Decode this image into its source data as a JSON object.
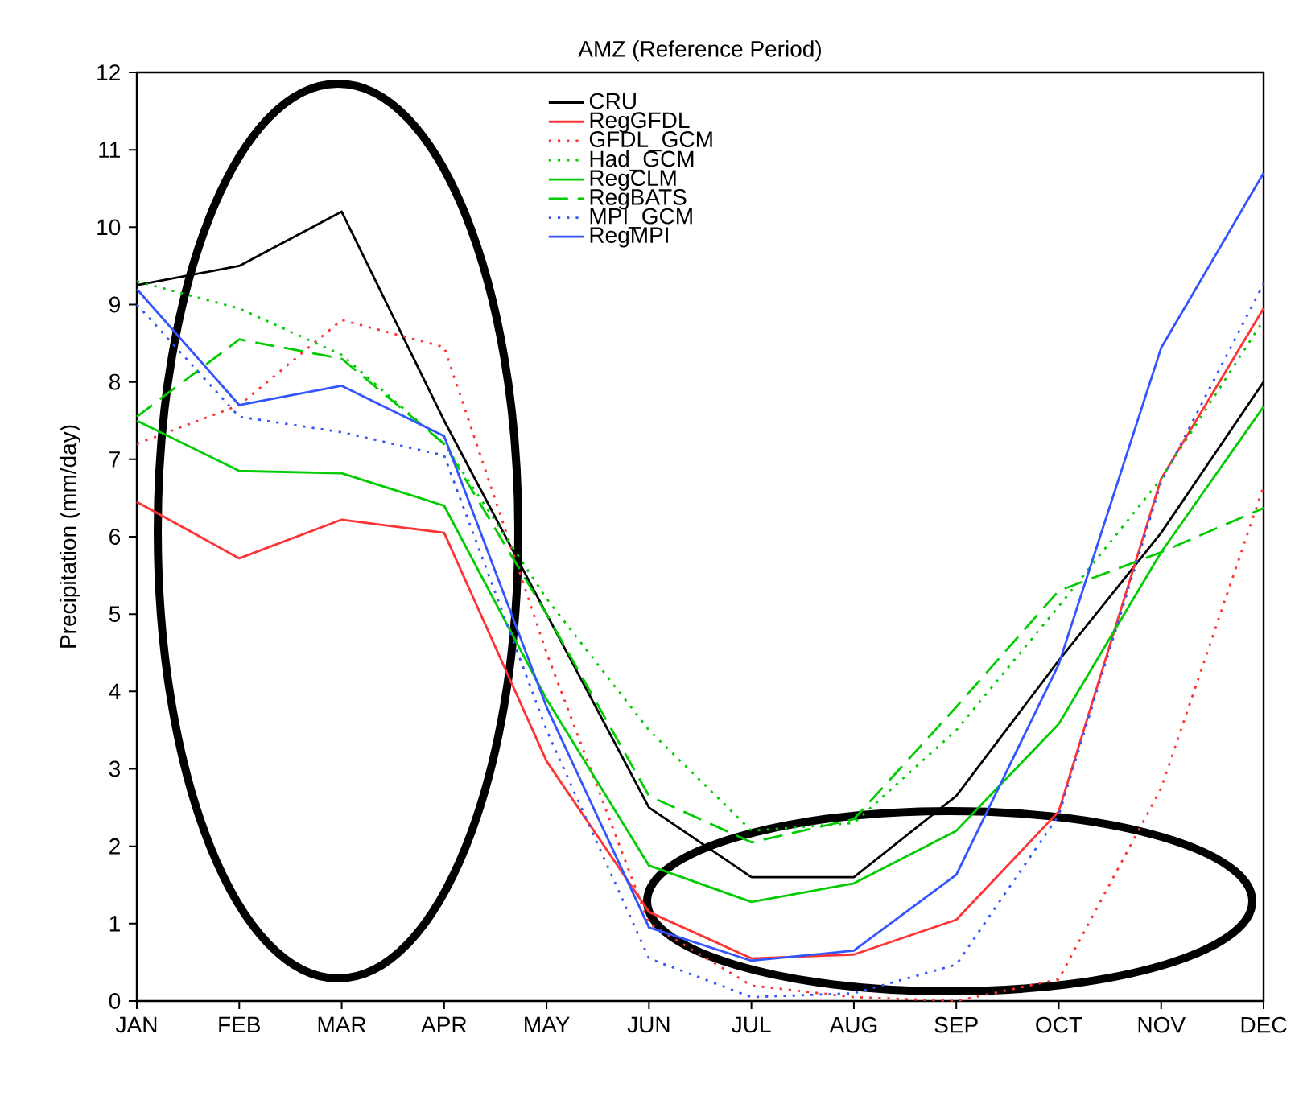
{
  "chart_data": {
    "type": "line",
    "title": "AMZ (Reference Period)",
    "ylabel": "Precipitation (mm/day)",
    "categories": [
      "JAN",
      "FEB",
      "MAR",
      "APR",
      "MAY",
      "JUN",
      "JUL",
      "AUG",
      "SEP",
      "OCT",
      "NOV",
      "DEC"
    ],
    "ylim": [
      0,
      12
    ],
    "yticks": [
      0,
      1,
      2,
      3,
      4,
      5,
      6,
      7,
      8,
      9,
      10,
      11,
      12
    ],
    "legend": "top",
    "marker": "none",
    "series": [
      {
        "name": "CRU",
        "color": "#000000",
        "line_style": "solid",
        "values": [
          9.25,
          9.5,
          10.2,
          7.5,
          5.0,
          2.5,
          1.6,
          1.6,
          2.65,
          4.4,
          6.05,
          8.0
        ]
      },
      {
        "name": "RegGFDL",
        "color": "#ff3333",
        "line_style": "solid",
        "values": [
          6.45,
          5.72,
          6.22,
          6.05,
          3.1,
          1.15,
          0.55,
          0.6,
          1.05,
          2.45,
          6.75,
          8.95
        ]
      },
      {
        "name": "GFDL_GCM",
        "color": "#ff3333",
        "line_style": "dotted",
        "values": [
          7.2,
          7.7,
          8.8,
          8.45,
          4.5,
          1.0,
          0.2,
          0.05,
          0.0,
          0.28,
          2.75,
          6.65
        ]
      },
      {
        "name": "Had_GCM",
        "color": "#00cc00",
        "line_style": "dotted",
        "values": [
          9.3,
          8.95,
          8.35,
          7.2,
          5.2,
          3.5,
          2.2,
          2.3,
          3.5,
          5.1,
          6.75,
          8.8
        ]
      },
      {
        "name": "RegCLM",
        "color": "#00cc00",
        "line_style": "solid",
        "values": [
          7.5,
          6.85,
          6.82,
          6.4,
          3.9,
          1.75,
          1.28,
          1.52,
          2.2,
          3.58,
          5.8,
          7.68
        ]
      },
      {
        "name": "RegBATS",
        "color": "#00cc00",
        "line_style": "dashed",
        "values": [
          7.55,
          8.55,
          8.3,
          7.2,
          5.0,
          2.65,
          2.05,
          2.35,
          3.8,
          5.3,
          5.8,
          6.37
        ]
      },
      {
        "name": "MPI_GCM",
        "color": "#3355ff",
        "line_style": "dotted",
        "values": [
          9.0,
          7.55,
          7.35,
          7.05,
          3.5,
          0.55,
          0.05,
          0.1,
          0.47,
          2.4,
          6.7,
          9.27
        ]
      },
      {
        "name": "RegMPI",
        "color": "#3355ff",
        "line_style": "solid",
        "values": [
          9.2,
          7.7,
          7.95,
          7.3,
          3.8,
          0.95,
          0.52,
          0.65,
          1.63,
          4.35,
          8.44,
          10.7
        ]
      }
    ]
  }
}
